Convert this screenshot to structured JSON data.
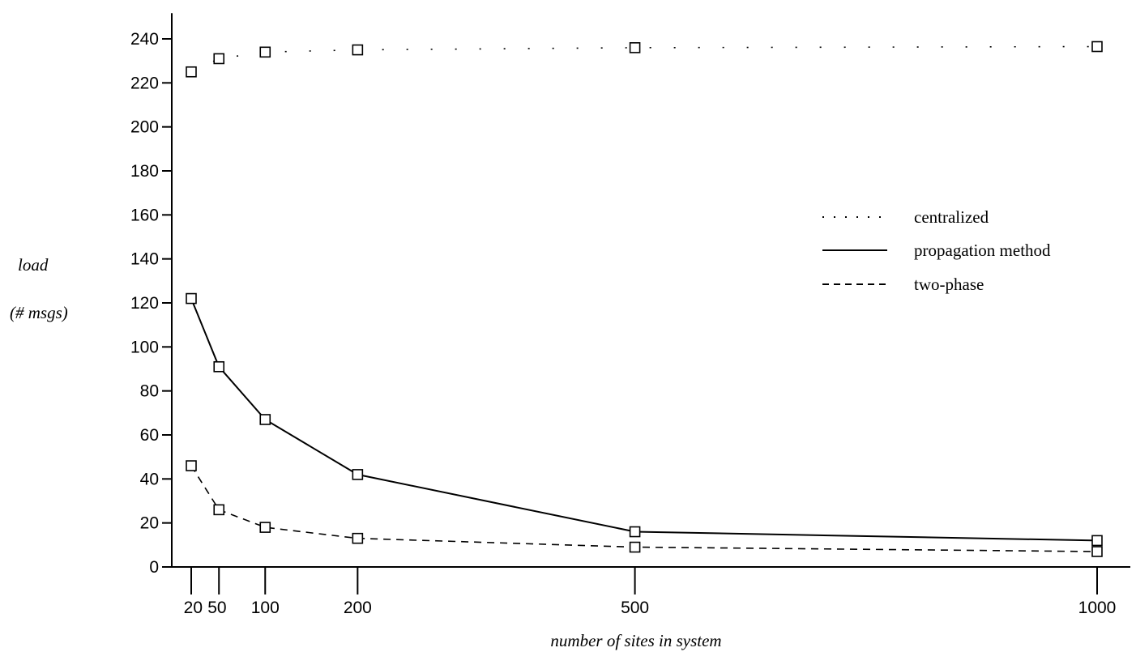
{
  "chart_data": {
    "type": "line",
    "title": "",
    "xlabel": "number of sites in system",
    "ylabel": "load",
    "ylabel_unit": "(# msgs)",
    "xlim": [
      0,
      1040
    ],
    "ylim": [
      0,
      248
    ],
    "x_ticks": [
      20,
      50,
      100,
      200,
      500,
      1000
    ],
    "x_tick_labels": [
      "20",
      "50",
      "100",
      "200",
      "500",
      "1000"
    ],
    "y_ticks": [
      0,
      20,
      40,
      60,
      80,
      100,
      120,
      140,
      160,
      180,
      200,
      220,
      240
    ],
    "grid": false,
    "legend_position": "right",
    "marker": "square",
    "series": [
      {
        "name": "centralized",
        "style": "dotted",
        "x": [
          20,
          50,
          100,
          200,
          500,
          1000
        ],
        "values": [
          225,
          231,
          234,
          235,
          236,
          236.5
        ]
      },
      {
        "name": "propagation method",
        "style": "solid",
        "x": [
          20,
          50,
          100,
          200,
          500,
          1000
        ],
        "values": [
          122,
          91,
          67,
          42,
          16,
          12
        ]
      },
      {
        "name": "two-phase",
        "style": "dashed",
        "x": [
          20,
          50,
          100,
          200,
          500,
          1000
        ],
        "values": [
          46,
          26,
          18,
          13,
          9,
          7
        ]
      }
    ]
  }
}
